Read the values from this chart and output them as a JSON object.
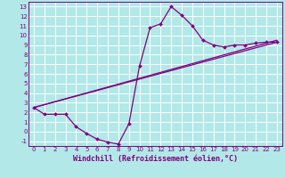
{
  "title": "",
  "xlabel": "Windchill (Refroidissement éolien,°C)",
  "ylabel": "",
  "bg_color": "#b2e8e8",
  "line_color": "#800080",
  "grid_color": "#ffffff",
  "xlim": [
    -0.5,
    23.5
  ],
  "ylim": [
    -1.5,
    13.5
  ],
  "xticks": [
    0,
    1,
    2,
    3,
    4,
    5,
    6,
    7,
    8,
    9,
    10,
    11,
    12,
    13,
    14,
    15,
    16,
    17,
    18,
    19,
    20,
    21,
    22,
    23
  ],
  "yticks": [
    -1,
    0,
    1,
    2,
    3,
    4,
    5,
    6,
    7,
    8,
    9,
    10,
    11,
    12,
    13
  ],
  "line1_x": [
    0,
    1,
    2,
    3,
    4,
    5,
    6,
    7,
    8,
    9,
    10,
    11,
    12,
    13,
    14,
    15,
    16,
    17,
    18,
    19,
    20,
    21,
    22,
    23
  ],
  "line1_y": [
    2.5,
    1.8,
    1.8,
    1.8,
    0.5,
    -0.2,
    -0.8,
    -1.1,
    -1.3,
    0.8,
    6.8,
    10.8,
    11.2,
    13.0,
    12.1,
    11.0,
    9.5,
    9.0,
    8.8,
    9.0,
    9.0,
    9.2,
    9.3,
    9.3
  ],
  "line2_x": [
    0,
    23
  ],
  "line2_y": [
    2.5,
    9.3
  ],
  "line3_x": [
    0,
    23
  ],
  "line3_y": [
    2.5,
    9.5
  ],
  "font_size_axis": 6.0,
  "font_size_tick": 5.0
}
